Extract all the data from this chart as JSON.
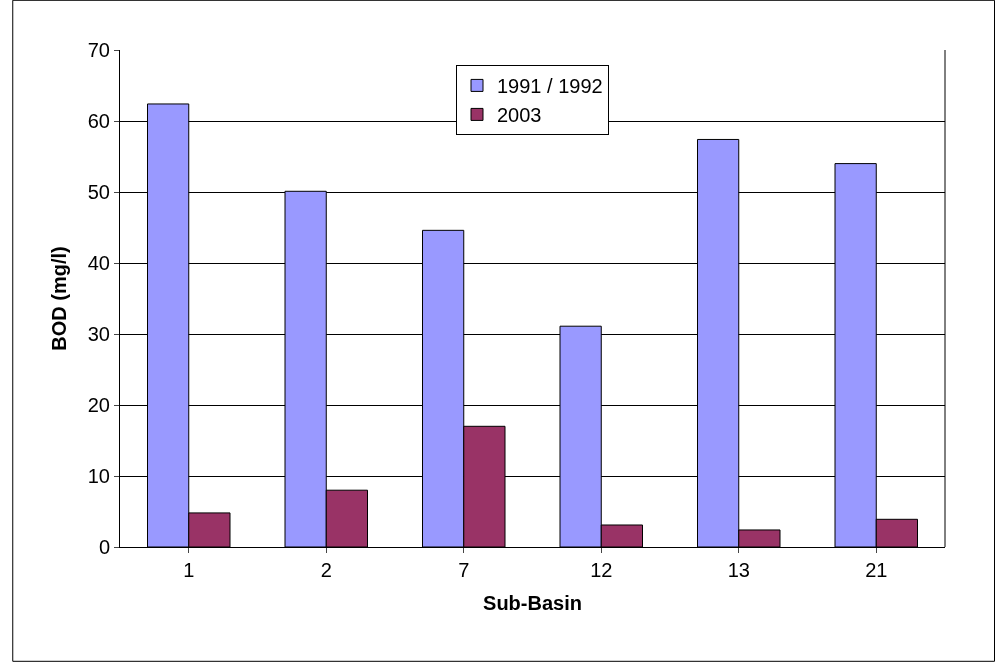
{
  "chart_data": {
    "type": "bar",
    "xlabel": "Sub-Basin",
    "ylabel": "BOD (mg/l)",
    "categories": [
      "1",
      "2",
      "7",
      "12",
      "13",
      "21"
    ],
    "series": [
      {
        "name": "1991 / 1992",
        "color": "#9999ff",
        "values": [
          62.4,
          50.1,
          44.6,
          31.1,
          57.4,
          54.0
        ]
      },
      {
        "name": "2003",
        "color": "#993366",
        "values": [
          4.8,
          8.0,
          17.0,
          3.1,
          2.4,
          3.9
        ]
      }
    ],
    "ylim": [
      0,
      70
    ],
    "yticks": [
      0,
      10,
      20,
      30,
      40,
      50,
      60,
      70
    ],
    "grid": "y",
    "legend": "top"
  }
}
